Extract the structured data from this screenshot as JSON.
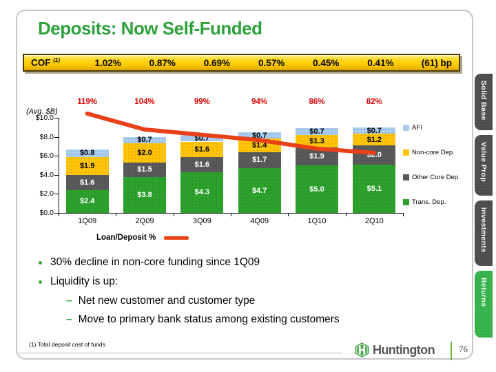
{
  "slide": {
    "title": "Deposits: Now Self-Funded",
    "footnote": "(1) Total deposit cost of funds",
    "page_number": "76",
    "brand": "Huntington"
  },
  "cof_banner": {
    "label": "COF",
    "footnote_marker": "(1)",
    "values": [
      "1.02%",
      "0.87%",
      "0.69%",
      "0.57%",
      "0.45%",
      "0.41%"
    ],
    "change": "(61) bp"
  },
  "chart_data": {
    "type": "bar",
    "stacked": true,
    "units_label": "(Avg. $B)",
    "categories": [
      "1Q09",
      "2Q09",
      "3Q09",
      "4Q09",
      "1Q10",
      "2Q10"
    ],
    "series": [
      {
        "name": "Trans. Dep.",
        "color": "#2ca12c",
        "label_color": "#ffffff",
        "values": [
          2.4,
          3.8,
          4.3,
          4.7,
          5.0,
          5.1
        ]
      },
      {
        "name": "Other Core Dep.",
        "color": "#595959",
        "label_color": "#ffffff",
        "values": [
          1.6,
          1.5,
          1.6,
          1.7,
          1.9,
          2.0
        ]
      },
      {
        "name": "Non-core Dep.",
        "color": "#ffc408",
        "label_color": "#000000",
        "values": [
          1.9,
          2.0,
          1.6,
          1.4,
          1.3,
          1.2
        ]
      },
      {
        "name": "AFI",
        "color": "#a9cdf0",
        "label_color": "#000000",
        "values": [
          0.8,
          0.7,
          0.7,
          0.7,
          0.7,
          0.7
        ]
      }
    ],
    "line_series": {
      "name": "Loan/Deposit %",
      "color": "#e84118",
      "label_color": "#d90000",
      "values": [
        119,
        104,
        99,
        94,
        86,
        82
      ],
      "labels": [
        "119%",
        "104%",
        "99%",
        "94%",
        "86%",
        "82%"
      ]
    },
    "ylim": [
      0,
      10
    ],
    "ytick_labels": [
      "$10.0",
      "$8.0",
      "$6.0",
      "$4.0",
      "$2.0",
      "$0.0"
    ],
    "legend": [
      "AFI",
      "Non-core Dep.",
      "Other Core Dep.",
      "Trans. Dep."
    ],
    "legend_position": "right",
    "grid": false
  },
  "bullets": [
    {
      "level": 1,
      "text": "30% decline in non-core funding since 1Q09"
    },
    {
      "level": 1,
      "text": "Liquidity is up:"
    },
    {
      "level": 2,
      "text": "Net new customer and customer type"
    },
    {
      "level": 2,
      "text": "Move to primary bank status among existing customers"
    }
  ],
  "side_tabs": [
    {
      "label": "Solid Base",
      "active": false
    },
    {
      "label": "Value Prop",
      "active": false
    },
    {
      "label": "Investments",
      "active": false
    },
    {
      "label": "Returns",
      "active": true
    }
  ],
  "colors": {
    "title_green": "#2ea13b",
    "banner_gold": "#ffd20a",
    "tab_gray": "#4b4b4b",
    "tab_active_green": "#33b24a",
    "logo_green": "#3aa23c"
  }
}
